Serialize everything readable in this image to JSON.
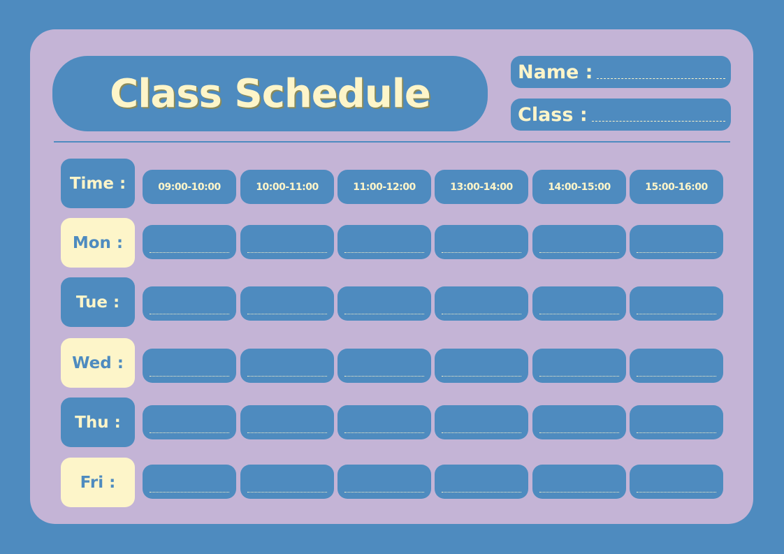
{
  "title": "Class Schedule",
  "fields": {
    "name_label": "Name :",
    "class_label": "Class :"
  },
  "time_label": "Time :",
  "time_slots": [
    "09:00-10:00",
    "10:00-11:00",
    "11:00-12:00",
    "13:00-14:00",
    "14:00-15:00",
    "15:00-16:00"
  ],
  "days": [
    {
      "label": "Mon :",
      "style": "yellow"
    },
    {
      "label": "Tue :",
      "style": "blue"
    },
    {
      "label": "Wed :",
      "style": "yellow"
    },
    {
      "label": "Thu :",
      "style": "blue"
    },
    {
      "label": "Fri :",
      "style": "yellow"
    }
  ],
  "colors": {
    "background": "#4e8bbf",
    "card": "#c4b4d6",
    "accent": "#fdf5c9"
  }
}
